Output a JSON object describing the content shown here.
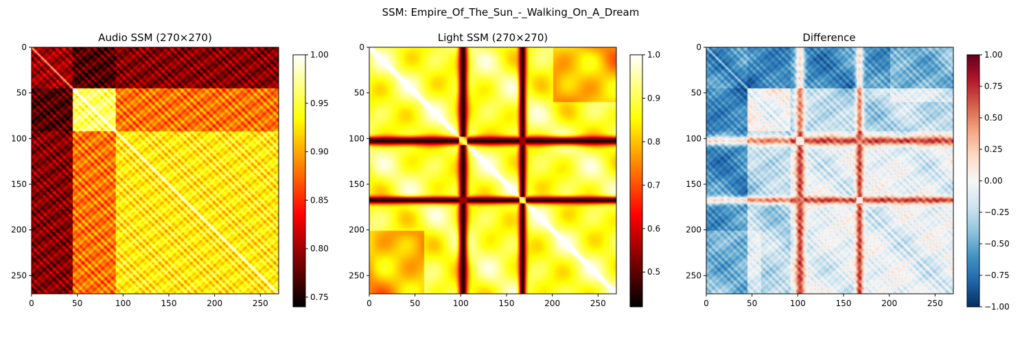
{
  "figure": {
    "suptitle": "SSM: Empire_Of_The_Sun_-_Walking_On_A_Dream"
  },
  "chart_data": [
    {
      "type": "heatmap",
      "title": "Audio SSM (270×270)",
      "size": 270,
      "colormap": "hot",
      "vmin": 0.74,
      "vmax": 1.0,
      "xlim": [
        0,
        270
      ],
      "ylim": [
        270,
        0
      ],
      "xticks": [
        0,
        50,
        100,
        150,
        200,
        250
      ],
      "yticks": [
        0,
        50,
        100,
        150,
        200,
        250
      ],
      "segments": [
        0,
        45,
        92,
        270
      ],
      "block_levels": [
        [
          0.8,
          0.77,
          0.79
        ],
        [
          0.77,
          0.96,
          0.88
        ],
        [
          0.79,
          0.88,
          0.93
        ]
      ],
      "colorbar_ticks": [
        "0.75",
        "0.80",
        "0.85",
        "0.90",
        "0.95",
        "1.00"
      ],
      "colorbar_values": [
        0.75,
        0.8,
        0.85,
        0.9,
        0.95,
        1.0
      ]
    },
    {
      "type": "heatmap",
      "title": "Light SSM (270×270)",
      "size": 270,
      "colormap": "hot",
      "vmin": 0.42,
      "vmax": 1.0,
      "xlim": [
        0,
        270
      ],
      "ylim": [
        270,
        0
      ],
      "xticks": [
        0,
        50,
        100,
        150,
        200,
        250
      ],
      "yticks": [
        0,
        50,
        100,
        150,
        200,
        250
      ],
      "dark_bands": [
        {
          "center": 102,
          "halfwidth": 6,
          "floor": 0.44
        },
        {
          "center": 167,
          "halfwidth": 5,
          "floor": 0.46
        }
      ],
      "base_level": 0.87,
      "colorbar_ticks": [
        "0.5",
        "0.6",
        "0.7",
        "0.8",
        "0.9",
        "1.0"
      ],
      "colorbar_values": [
        0.5,
        0.6,
        0.7,
        0.8,
        0.9,
        1.0
      ]
    },
    {
      "type": "heatmap",
      "title": "Difference",
      "size": 270,
      "colormap": "RdBu_r",
      "vmin": -1.0,
      "vmax": 1.0,
      "xlim": [
        0,
        270
      ],
      "ylim": [
        270,
        0
      ],
      "xticks": [
        0,
        50,
        100,
        150,
        200,
        250
      ],
      "yticks": [
        0,
        50,
        100,
        150,
        200,
        250
      ],
      "colorbar_ticks": [
        "1.00",
        "0.75",
        "0.50",
        "0.25",
        "0.00",
        "−0.25",
        "−0.50",
        "−0.75",
        "−1.00"
      ],
      "colorbar_values": [
        1.0,
        0.75,
        0.5,
        0.25,
        0.0,
        -0.25,
        -0.5,
        -0.75,
        -1.0
      ]
    }
  ]
}
